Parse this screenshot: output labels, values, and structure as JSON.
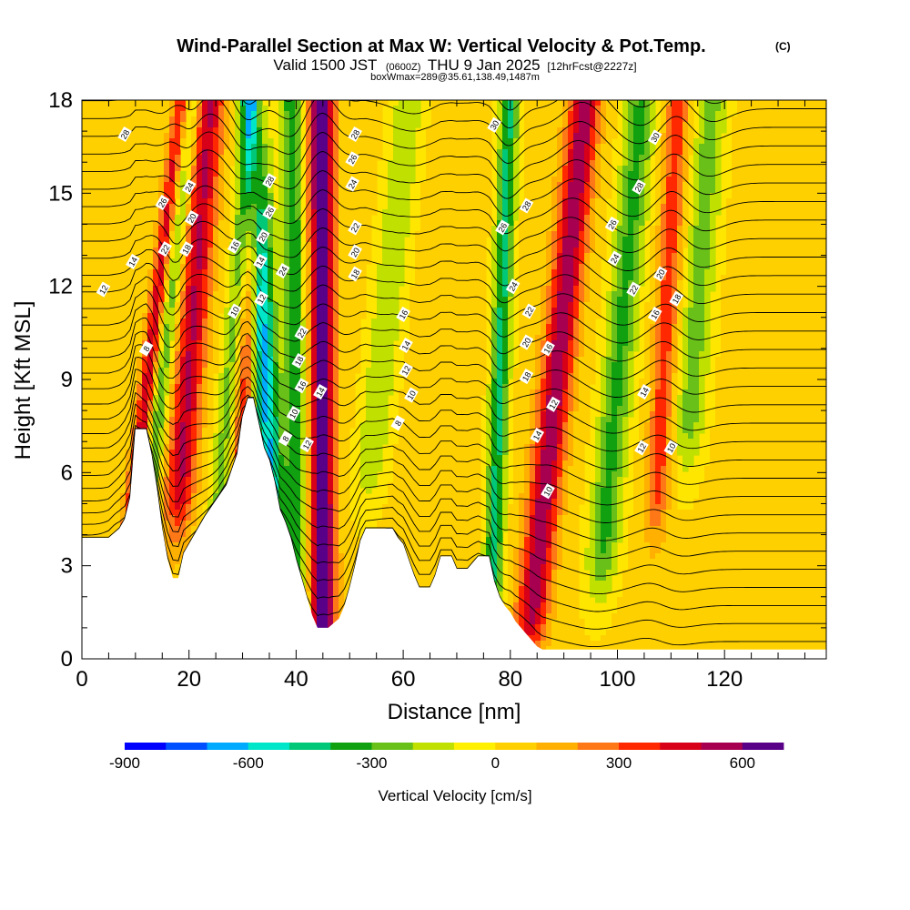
{
  "title": "Wind-Parallel Section at Max W: Vertical Velocity & Pot.Temp.",
  "title_mark": "(C)",
  "subtitle": {
    "main": "Valid 1500 JST",
    "zone": "(0600Z)",
    "date": "THU 9 Jan 2025",
    "fcst": "[12hrFcst@2227z]"
  },
  "box_info": "boxWmax=289@35.61,138.49,1487m",
  "chart_data": {
    "type": "heatmap",
    "xlabel": "Distance [nm]",
    "ylabel": "Height [Kft MSL]",
    "xlim": [
      0,
      139
    ],
    "ylim": [
      0,
      18
    ],
    "x_ticks": [
      0,
      20,
      40,
      60,
      80,
      100,
      120
    ],
    "y_ticks": [
      0,
      3,
      6,
      9,
      12,
      15,
      18
    ],
    "colorbar": {
      "label": "Vertical Velocity [cm/s]",
      "range": [
        -900,
        700
      ],
      "step": 100,
      "tick_labels": [
        "-900",
        "-600",
        "-300",
        "0",
        "300",
        "600"
      ],
      "tick_values": [
        -900,
        -600,
        -300,
        0,
        300,
        600
      ],
      "colors": [
        "#0000ff",
        "#0050ff",
        "#00aaff",
        "#00e6c8",
        "#00c878",
        "#10a010",
        "#68c018",
        "#c0e000",
        "#fff000",
        "#ffd000",
        "#ffb000",
        "#ff7818",
        "#ff2800",
        "#d80018",
        "#a80050",
        "#580088"
      ]
    },
    "terrain_kft": [
      [
        0,
        3.9
      ],
      [
        5,
        3.9
      ],
      [
        7,
        4.2
      ],
      [
        8,
        4.5
      ],
      [
        9,
        5.2
      ],
      [
        10,
        7.4
      ],
      [
        12,
        7.4
      ],
      [
        13,
        6.6
      ],
      [
        14,
        5.5
      ],
      [
        15,
        4.2
      ],
      [
        16,
        3.2
      ],
      [
        17,
        2.6
      ],
      [
        18,
        2.6
      ],
      [
        19,
        3.4
      ],
      [
        20,
        3.7
      ],
      [
        21,
        4
      ],
      [
        22,
        4.3
      ],
      [
        23,
        4.6
      ],
      [
        25,
        5.1
      ],
      [
        27,
        5.6
      ],
      [
        29,
        6.6
      ],
      [
        30,
        7.8
      ],
      [
        31,
        8.4
      ],
      [
        32,
        8.4
      ],
      [
        33,
        7.6
      ],
      [
        34,
        6.8
      ],
      [
        35,
        6.4
      ],
      [
        36,
        5.7
      ],
      [
        37,
        4.8
      ],
      [
        38,
        4.4
      ],
      [
        39,
        3.9
      ],
      [
        40,
        3.2
      ],
      [
        41,
        2.6
      ],
      [
        42,
        2.0
      ],
      [
        43,
        1.4
      ],
      [
        44,
        1.0
      ],
      [
        46,
        1.0
      ],
      [
        48,
        1.3
      ],
      [
        49,
        1.7
      ],
      [
        50,
        2.3
      ],
      [
        51,
        3.0
      ],
      [
        52,
        3.8
      ],
      [
        53,
        4.2
      ],
      [
        56,
        4.2
      ],
      [
        57,
        4.2
      ],
      [
        58,
        4.2
      ],
      [
        59,
        3.9
      ],
      [
        60,
        3.7
      ],
      [
        61,
        3.2
      ],
      [
        62,
        2.7
      ],
      [
        63,
        2.3
      ],
      [
        65,
        2.3
      ],
      [
        66,
        2.7
      ],
      [
        67,
        3.3
      ],
      [
        69,
        3.3
      ],
      [
        70,
        2.9
      ],
      [
        72,
        2.9
      ],
      [
        74,
        3.3
      ],
      [
        76,
        3.3
      ],
      [
        77,
        2.5
      ],
      [
        78,
        2.0
      ],
      [
        79,
        1.7
      ],
      [
        80,
        1.5
      ],
      [
        81,
        1.2
      ],
      [
        82,
        1.0
      ],
      [
        83,
        0.8
      ],
      [
        84,
        0.6
      ],
      [
        85,
        0.4
      ],
      [
        86,
        0.3
      ],
      [
        139,
        0.3
      ]
    ],
    "w_features": [
      {
        "x": 10,
        "z0": 5.5,
        "slope": 0.7,
        "half_width": 1.6,
        "amp": 500
      },
      {
        "x": 13,
        "z0": 6,
        "slope": 0.6,
        "half_width": 1.8,
        "amp": -350
      },
      {
        "x": 19,
        "z0": 7,
        "slope": 0.45,
        "half_width": 2.8,
        "amp": 480
      },
      {
        "x": 26,
        "z0": 6,
        "slope": 0.5,
        "half_width": 2.0,
        "amp": -260
      },
      {
        "x": 30,
        "z0": 7.5,
        "slope": 0.3,
        "half_width": 1.6,
        "amp": 380
      },
      {
        "x": 35,
        "z0": 6,
        "slope": -0.25,
        "half_width": 2.4,
        "amp": -650
      },
      {
        "x": 40,
        "z0": 2,
        "slope": -0.05,
        "half_width": 2.0,
        "amp": -420
      },
      {
        "x": 45,
        "z0": 2,
        "slope": -0.02,
        "half_width": 2.3,
        "amp": 700
      },
      {
        "x": 55,
        "z0": 8,
        "slope": 0.6,
        "half_width": 3.0,
        "amp": -230
      },
      {
        "x": 77,
        "z0": 4,
        "slope": 0.2,
        "half_width": 1.8,
        "amp": -460
      },
      {
        "x": 85,
        "z0": 3,
        "slope": 0.6,
        "half_width": 3.0,
        "amp": 540
      },
      {
        "x": 98,
        "z0": 5,
        "slope": 0.5,
        "half_width": 3.0,
        "amp": -360
      },
      {
        "x": 108,
        "z0": 7,
        "slope": 0.3,
        "half_width": 2.2,
        "amp": 330
      },
      {
        "x": 114,
        "z0": 9,
        "slope": 0.4,
        "half_width": 3.0,
        "amp": -280
      }
    ],
    "theta_labels": [
      {
        "text": "28",
        "x": 8,
        "y": 16.9
      },
      {
        "text": "12",
        "x": 4,
        "y": 11.9
      },
      {
        "text": "14",
        "x": 9.5,
        "y": 12.8
      },
      {
        "text": "8",
        "x": 12,
        "y": 10
      },
      {
        "text": "26",
        "x": 15,
        "y": 14.7
      },
      {
        "text": "22",
        "x": 15.5,
        "y": 13.2
      },
      {
        "text": "24",
        "x": 20,
        "y": 15.2
      },
      {
        "text": "20",
        "x": 20.5,
        "y": 14.2
      },
      {
        "text": "18",
        "x": 19.5,
        "y": 13.2
      },
      {
        "text": "16",
        "x": 28.5,
        "y": 13.3
      },
      {
        "text": "10",
        "x": 28.5,
        "y": 11.2
      },
      {
        "text": "28",
        "x": 35,
        "y": 15.4
      },
      {
        "text": "26",
        "x": 35,
        "y": 14.4
      },
      {
        "text": "20",
        "x": 33.8,
        "y": 13.6
      },
      {
        "text": "14",
        "x": 33.3,
        "y": 12.8
      },
      {
        "text": "12",
        "x": 33.5,
        "y": 11.6
      },
      {
        "text": "24",
        "x": 37.5,
        "y": 12.5
      },
      {
        "text": "22",
        "x": 41,
        "y": 10.5
      },
      {
        "text": "18",
        "x": 40.5,
        "y": 9.6
      },
      {
        "text": "16",
        "x": 41,
        "y": 8.8
      },
      {
        "text": "14",
        "x": 44.5,
        "y": 8.6
      },
      {
        "text": "10",
        "x": 39.5,
        "y": 7.9
      },
      {
        "text": "8",
        "x": 38,
        "y": 7.1
      },
      {
        "text": "12",
        "x": 42,
        "y": 6.9
      },
      {
        "text": "28",
        "x": 51,
        "y": 16.9
      },
      {
        "text": "26",
        "x": 50.5,
        "y": 16.1
      },
      {
        "text": "24",
        "x": 50.5,
        "y": 15.3
      },
      {
        "text": "22",
        "x": 51,
        "y": 13.9
      },
      {
        "text": "20",
        "x": 51,
        "y": 13.1
      },
      {
        "text": "18",
        "x": 51,
        "y": 12.4
      },
      {
        "text": "16",
        "x": 60,
        "y": 11.1
      },
      {
        "text": "14",
        "x": 60.5,
        "y": 10.1
      },
      {
        "text": "12",
        "x": 60.5,
        "y": 9.3
      },
      {
        "text": "10",
        "x": 61.5,
        "y": 8.5
      },
      {
        "text": "8",
        "x": 59,
        "y": 7.6
      },
      {
        "text": "30",
        "x": 77,
        "y": 17.2
      },
      {
        "text": "28",
        "x": 83,
        "y": 14.6
      },
      {
        "text": "26",
        "x": 78.5,
        "y": 13.9
      },
      {
        "text": "24",
        "x": 80.5,
        "y": 12.0
      },
      {
        "text": "22",
        "x": 83.5,
        "y": 11.2
      },
      {
        "text": "20",
        "x": 83,
        "y": 10.2
      },
      {
        "text": "16",
        "x": 87,
        "y": 10.0
      },
      {
        "text": "18",
        "x": 83,
        "y": 9.1
      },
      {
        "text": "12",
        "x": 88,
        "y": 8.2
      },
      {
        "text": "14",
        "x": 85,
        "y": 7.2
      },
      {
        "text": "10",
        "x": 87,
        "y": 5.4
      },
      {
        "text": "30",
        "x": 107,
        "y": 16.8
      },
      {
        "text": "28",
        "x": 104,
        "y": 15.2
      },
      {
        "text": "26",
        "x": 99,
        "y": 14.0
      },
      {
        "text": "24",
        "x": 99.5,
        "y": 12.9
      },
      {
        "text": "22",
        "x": 103,
        "y": 11.9
      },
      {
        "text": "20",
        "x": 108,
        "y": 12.4
      },
      {
        "text": "18",
        "x": 111,
        "y": 11.6
      },
      {
        "text": "16",
        "x": 107,
        "y": 11.1
      },
      {
        "text": "14",
        "x": 105,
        "y": 8.6
      },
      {
        "text": "12",
        "x": 104.5,
        "y": 6.8
      },
      {
        "text": "10",
        "x": 110,
        "y": 6.8
      }
    ]
  }
}
